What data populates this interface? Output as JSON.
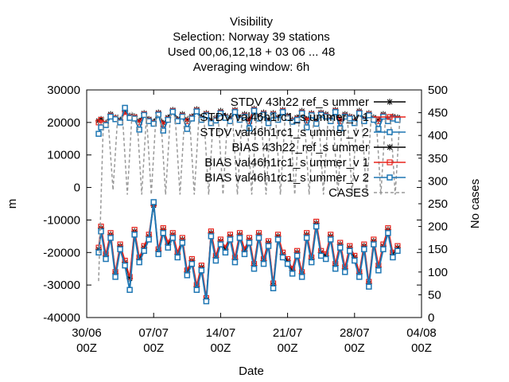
{
  "chart_data": {
    "type": "line",
    "title_lines": [
      "Visibility",
      "Selection: Norway     39 stations",
      "Used  00,06,12,18  + 03 06 ... 48",
      "Averaging window:  6h"
    ],
    "xlabel": "Date",
    "ylabel": "m",
    "y2label": "No cases",
    "xlim": [
      0,
      35
    ],
    "ylim": [
      -40000,
      30000
    ],
    "y2lim": [
      0,
      500
    ],
    "x_ticks": [
      {
        "x": 0,
        "line1": "30/06",
        "line2": "00Z"
      },
      {
        "x": 7,
        "line1": "07/07",
        "line2": "00Z"
      },
      {
        "x": 14,
        "line1": "14/07",
        "line2": "00Z"
      },
      {
        "x": 21,
        "line1": "21/07",
        "line2": "00Z"
      },
      {
        "x": 28,
        "line1": "28/07",
        "line2": "00Z"
      },
      {
        "x": 35,
        "line1": "04/08",
        "line2": "00Z"
      }
    ],
    "y_ticks": [
      "30000",
      "20000",
      "10000",
      "0",
      "-10000",
      "-20000",
      "-30000",
      "-40000"
    ],
    "y_tick_values": [
      30000,
      20000,
      10000,
      0,
      -10000,
      -20000,
      -30000,
      -40000
    ],
    "y2_ticks": [
      "500",
      "450",
      "400",
      "350",
      "300",
      "250",
      "200",
      "150",
      "100",
      "50",
      "0"
    ],
    "y2_tick_values": [
      500,
      450,
      400,
      350,
      300,
      250,
      200,
      150,
      100,
      50,
      0
    ],
    "legend_position": "top-right",
    "series": [
      {
        "name": "STDV 43h22_ref_summer",
        "label": "STDV 43h22 ref_s ummer",
        "color": "#000000",
        "marker": "star",
        "dash": "",
        "x": [
          1.25,
          1.5,
          2,
          2.5,
          3,
          3.5,
          4,
          4.5,
          5,
          5.5,
          6,
          6.5,
          7,
          7.5,
          8,
          8.5,
          9,
          9.5,
          10,
          10.5,
          11,
          11.5,
          12,
          12.5,
          13,
          13.5,
          14,
          14.5,
          15,
          15.5,
          16,
          16.5,
          17,
          17.5,
          18,
          18.5,
          19,
          19.5,
          20,
          20.5,
          21,
          21.5,
          22,
          22.5,
          23,
          23.5,
          24,
          24.5,
          25,
          25.5,
          26,
          26.5,
          27,
          27.5,
          28,
          28.5,
          29,
          29.5,
          30,
          30.5,
          31,
          31.5,
          32,
          32.5
        ],
        "y": [
          20500,
          21000,
          19800,
          22500,
          21500,
          20800,
          23500,
          22000,
          21800,
          20500,
          22800,
          21000,
          20200,
          23000,
          19800,
          21500,
          23800,
          21000,
          22500,
          20800,
          21800,
          24000,
          21500,
          22800,
          20500,
          21200,
          23500,
          22000,
          21000,
          23800,
          21500,
          22500,
          20800,
          24200,
          21800,
          23000,
          20500,
          22800,
          21500,
          23800,
          22000,
          20800,
          21500,
          23500,
          21000,
          22800,
          20200,
          23000,
          22500,
          21000,
          23800,
          20800,
          22500,
          21800,
          20500,
          23500,
          21000,
          22800,
          21500,
          20800,
          22500,
          21000,
          21800,
          21500
        ]
      },
      {
        "name": "STDV val46h1rc1_summer_v1",
        "label": "STDV val46h1rc1_s ummer_v 1",
        "color": "#e8231c",
        "marker": "square",
        "dash": "",
        "x": [
          1.25,
          1.5,
          2,
          2.5,
          3,
          3.5,
          4,
          4.5,
          5,
          5.5,
          6,
          6.5,
          7,
          7.5,
          8,
          8.5,
          9,
          9.5,
          10,
          10.5,
          11,
          11.5,
          12,
          12.5,
          13,
          13.5,
          14,
          14.5,
          15,
          15.5,
          16,
          16.5,
          17,
          17.5,
          18,
          18.5,
          19,
          19.5,
          20,
          20.5,
          21,
          21.5,
          22,
          22.5,
          23,
          23.5,
          24,
          24.5,
          25,
          25.5,
          26,
          26.5,
          27,
          27.5,
          28,
          28.5,
          29,
          29.5,
          30,
          30.5,
          31,
          31.5,
          32,
          32.5
        ],
        "y": [
          20000,
          20800,
          19500,
          22000,
          21200,
          20200,
          23200,
          21600,
          21500,
          20000,
          22500,
          20600,
          19800,
          22600,
          19400,
          21000,
          23500,
          20600,
          22000,
          20400,
          21400,
          23600,
          21000,
          22400,
          20000,
          20800,
          23000,
          21600,
          20600,
          23400,
          21000,
          22000,
          20400,
          23800,
          21400,
          22600,
          20000,
          22400,
          21000,
          23400,
          21600,
          20400,
          21000,
          23000,
          20600,
          22400,
          19800,
          22600,
          22000,
          20600,
          23400,
          20400,
          22000,
          21400,
          20000,
          23000,
          20600,
          22400,
          21000,
          20400,
          22000,
          20600,
          21400,
          21000
        ]
      },
      {
        "name": "STDV val46h1rc1_summer_v2",
        "label": "STDV val46h1rc1_s ummer_v 2",
        "color": "#1f77b4",
        "marker": "square-open",
        "dash": "",
        "x": [
          1.25,
          1.5,
          2,
          2.5,
          3,
          3.5,
          4,
          4.5,
          5,
          5.5,
          6,
          6.5,
          7,
          7.5,
          8,
          8.5,
          9,
          9.5,
          10,
          10.5,
          11,
          11.5,
          12,
          12.5,
          13,
          13.5,
          14,
          14.5,
          15,
          15.5,
          16,
          16.5,
          17,
          17.5,
          18,
          18.5,
          19,
          19.5,
          20,
          20.5,
          21,
          21.5,
          22,
          22.5,
          23,
          23.5,
          24,
          24.5,
          25,
          25.5,
          26,
          26.5,
          27,
          27.5,
          28,
          28.5,
          29,
          29.5,
          30,
          30.5,
          31,
          31.5,
          32,
          32.5
        ],
        "y": [
          16500,
          18500,
          19200,
          21800,
          21000,
          20000,
          24500,
          21400,
          21200,
          17800,
          22300,
          20400,
          19600,
          22400,
          17500,
          20800,
          23300,
          20400,
          21800,
          18000,
          21200,
          23400,
          20800,
          22200,
          19800,
          20600,
          22800,
          21400,
          20400,
          23200,
          20800,
          21800,
          18200,
          23600,
          21200,
          22400,
          19800,
          22200,
          20800,
          23200,
          21400,
          20200,
          20800,
          22800,
          18500,
          22200,
          19600,
          22400,
          21800,
          20400,
          23200,
          18200,
          21800,
          21200,
          19800,
          22800,
          20400,
          22200,
          20800,
          18000,
          21800,
          20400,
          21200,
          20800
        ]
      },
      {
        "name": "BIAS 43h22_ref_summer",
        "label": "BIAS 43h22_ref_s ummer",
        "color": "#000000",
        "marker": "star",
        "dash": "",
        "x": [
          1.25,
          1.5,
          2,
          2.5,
          3,
          3.5,
          4,
          4.5,
          5,
          5.5,
          6,
          6.5,
          7,
          7.5,
          8,
          8.5,
          9,
          9.5,
          10,
          10.5,
          11,
          11.5,
          12,
          12.5,
          13,
          13.5,
          14,
          14.5,
          15,
          15.5,
          16,
          16.5,
          17,
          17.5,
          18,
          18.5,
          19,
          19.5,
          20,
          20.5,
          21,
          21.5,
          22,
          22.5,
          23,
          23.5,
          24,
          24.5,
          25,
          25.5,
          26,
          26.5,
          27,
          27.5,
          28,
          28.5,
          29,
          29.5,
          30,
          30.5,
          31,
          31.5,
          32,
          32.5
        ],
        "y": [
          -19000,
          -12500,
          -21000,
          -14500,
          -26500,
          -18000,
          -23000,
          -28000,
          -13500,
          -22000,
          -18500,
          -15000,
          -5500,
          -19500,
          -13000,
          -17500,
          -14500,
          -20500,
          -16000,
          -26000,
          -22500,
          -30500,
          -24500,
          -34500,
          -14000,
          -21500,
          -16500,
          -19000,
          -15000,
          -22000,
          -14500,
          -19500,
          -16000,
          -24000,
          -14500,
          -22500,
          -17000,
          -30000,
          -15000,
          -20500,
          -22500,
          -25500,
          -20000,
          -26500,
          -14500,
          -22000,
          -11000,
          -20000,
          -21000,
          -15000,
          -24000,
          -17500,
          -25000,
          -18500,
          -21500,
          -26500,
          -18000,
          -29500,
          -16500,
          -24500,
          -18000,
          -13000,
          -20500,
          -18500
        ]
      },
      {
        "name": "BIAS val46h1rc1_summer_v1",
        "label": "BIAS val46h1rc1_s ummer_v 1",
        "color": "#e8231c",
        "marker": "square",
        "dash": "",
        "x": [
          1.25,
          1.5,
          2,
          2.5,
          3,
          3.5,
          4,
          4.5,
          5,
          5.5,
          6,
          6.5,
          7,
          7.5,
          8,
          8.5,
          9,
          9.5,
          10,
          10.5,
          11,
          11.5,
          12,
          12.5,
          13,
          13.5,
          14,
          14.5,
          15,
          15.5,
          16,
          16.5,
          17,
          17.5,
          18,
          18.5,
          19,
          19.5,
          20,
          20.5,
          21,
          21.5,
          22,
          22.5,
          23,
          23.5,
          24,
          24.5,
          25,
          25.5,
          26,
          26.5,
          27,
          27.5,
          28,
          28.5,
          29,
          29.5,
          30,
          30.5,
          31,
          31.5,
          32,
          32.5
        ],
        "y": [
          -18500,
          -12000,
          -20500,
          -14000,
          -26000,
          -17500,
          -22500,
          -27500,
          -13000,
          -21500,
          -18000,
          -14500,
          -5000,
          -19000,
          -12500,
          -17000,
          -14000,
          -20000,
          -15500,
          -25500,
          -22000,
          -30000,
          -24000,
          -34000,
          -13500,
          -21000,
          -16000,
          -18500,
          -14500,
          -21500,
          -14000,
          -19000,
          -15500,
          -23500,
          -14000,
          -22000,
          -16500,
          -29500,
          -14500,
          -20000,
          -22000,
          -25000,
          -19500,
          -26000,
          -14000,
          -21500,
          -10500,
          -19500,
          -20500,
          -14500,
          -23500,
          -17000,
          -24500,
          -18000,
          -21000,
          -26000,
          -17500,
          -29000,
          -16000,
          -24000,
          -17500,
          -12500,
          -20000,
          -18000
        ]
      },
      {
        "name": "BIAS val46h1rc1_summer_v2",
        "label": "BIAS val46h1rc1_s ummer_v 2",
        "color": "#1f77b4",
        "marker": "square-open",
        "dash": "",
        "x": [
          1.25,
          1.5,
          2,
          2.5,
          3,
          3.5,
          4,
          4.5,
          5,
          5.5,
          6,
          6.5,
          7,
          7.5,
          8,
          8.5,
          9,
          9.5,
          10,
          10.5,
          11,
          11.5,
          12,
          12.5,
          13,
          13.5,
          14,
          14.5,
          15,
          15.5,
          16,
          16.5,
          17,
          17.5,
          18,
          18.5,
          19,
          19.5,
          20,
          20.5,
          21,
          21.5,
          22,
          22.5,
          23,
          23.5,
          24,
          24.5,
          25,
          25.5,
          26,
          26.5,
          27,
          27.5,
          28,
          28.5,
          29,
          29.5,
          30,
          30.5,
          31,
          31.5,
          32,
          32.5
        ],
        "y": [
          -20000,
          -13500,
          -22000,
          -15500,
          -27500,
          -19000,
          -24000,
          -31500,
          -14500,
          -23000,
          -19500,
          -16000,
          -4500,
          -20500,
          -14000,
          -18500,
          -15500,
          -21500,
          -17000,
          -27000,
          -23500,
          -31500,
          -25500,
          -35000,
          -15000,
          -22500,
          -17500,
          -20000,
          -16000,
          -23000,
          -15500,
          -20500,
          -17000,
          -25000,
          -15500,
          -23500,
          -18000,
          -31000,
          -16000,
          -21500,
          -23500,
          -26500,
          -21000,
          -27500,
          -15500,
          -23000,
          -12000,
          -21000,
          -22000,
          -16000,
          -25000,
          -18500,
          -26000,
          -19500,
          -22500,
          -27500,
          -19000,
          -30500,
          -17500,
          -25500,
          -19000,
          -14000,
          -21500,
          -19500
        ]
      },
      {
        "name": "CASES",
        "label": "CASES",
        "color": "#999999",
        "marker": "none",
        "dash": "4,3",
        "axis": "y2",
        "x": [
          1.25,
          1.75,
          2.25,
          2.75,
          3.25,
          3.75,
          4.25,
          4.75,
          5.25,
          5.75,
          6.25,
          6.75,
          7.25,
          7.75,
          8.25,
          8.75,
          9.25,
          9.75,
          10.25,
          10.75,
          11.25,
          11.75,
          12.25,
          12.75,
          13.25,
          13.75,
          14.25,
          14.75,
          15.25,
          15.75,
          16.25,
          16.75,
          17.25,
          17.75,
          18.25,
          18.75,
          19.25,
          19.75,
          20.25,
          20.75,
          21.25,
          21.75,
          22.25,
          22.75,
          23.25,
          23.75,
          24.25,
          24.75,
          25.25,
          25.75,
          26.25,
          26.75,
          27.25,
          27.75,
          28.25,
          28.75,
          29.25,
          29.75,
          30.25,
          30.75,
          31.25,
          31.75,
          32.25,
          32.75
        ],
        "y": [
          80,
          440,
          430,
          280,
          445,
          440,
          270,
          450,
          440,
          270,
          445,
          270,
          445,
          440,
          270,
          445,
          440,
          270,
          445,
          440,
          270,
          445,
          440,
          270,
          445,
          440,
          270,
          445,
          440,
          270,
          445,
          440,
          270,
          445,
          440,
          270,
          445,
          440,
          270,
          445,
          440,
          270,
          445,
          440,
          270,
          445,
          440,
          270,
          445,
          440,
          270,
          445,
          440,
          270,
          445,
          440,
          270,
          445,
          440,
          270,
          445,
          440,
          270,
          440
        ]
      }
    ]
  }
}
